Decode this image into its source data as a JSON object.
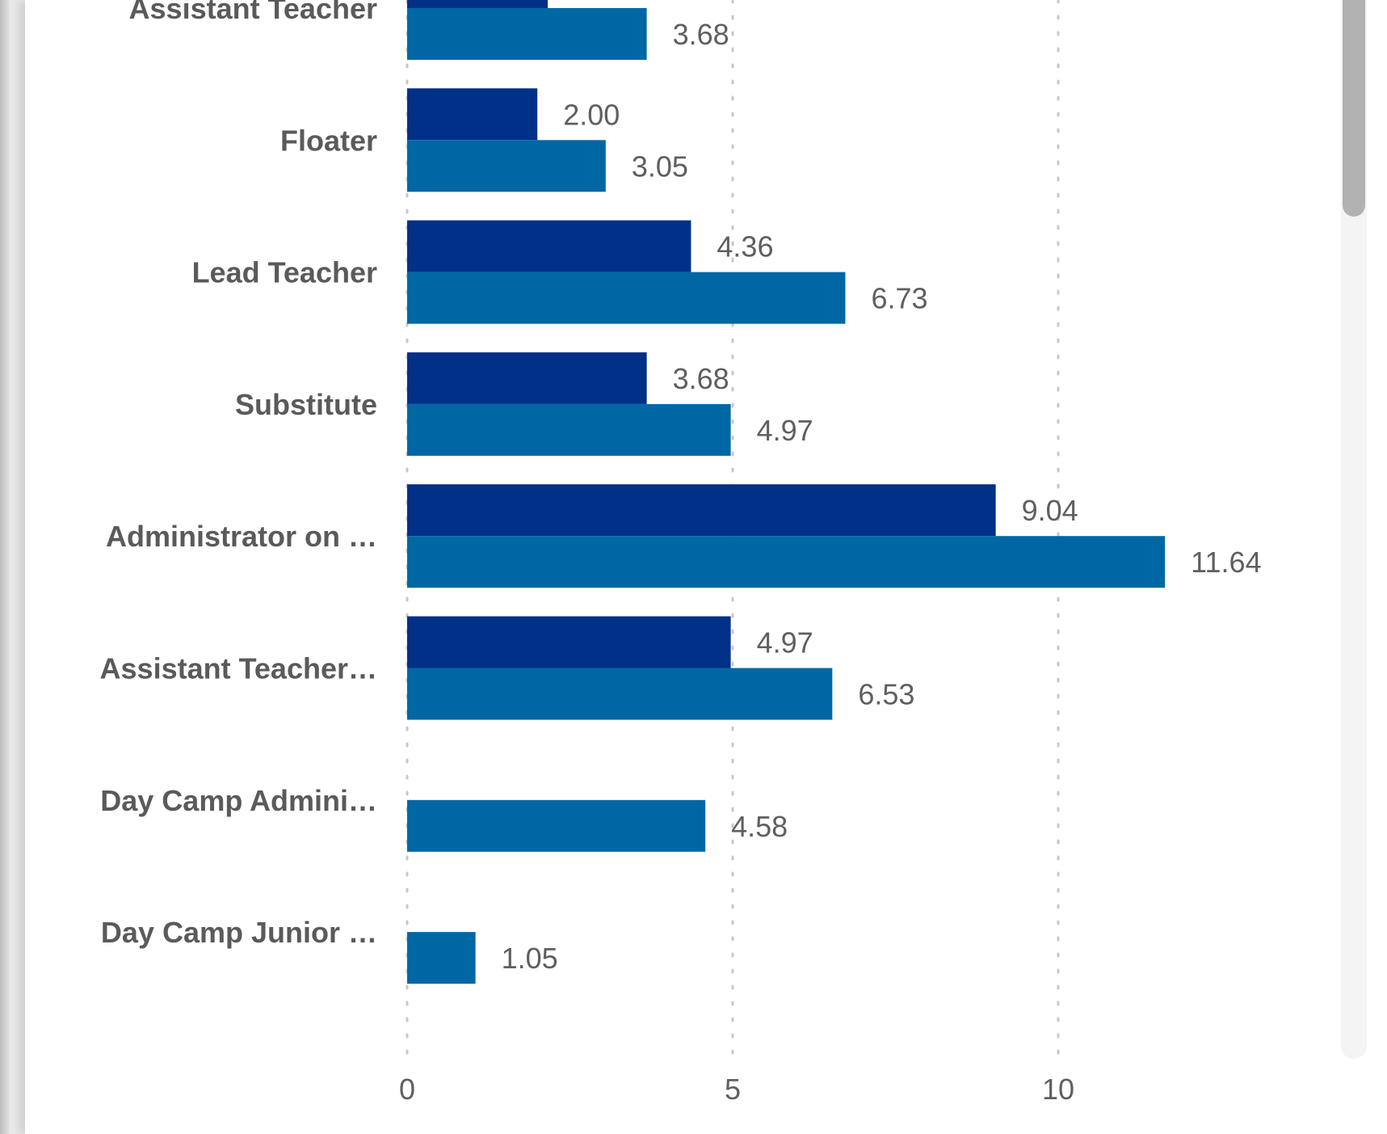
{
  "chart_data": {
    "type": "bar",
    "orientation": "horizontal",
    "categories": [
      "Assistant Teacher",
      "Floater",
      "Lead Teacher",
      "Substitute",
      "Administrator on …",
      "Assistant Teacher…",
      "Day Camp Admini…",
      "Day Camp Junior …"
    ],
    "series": [
      {
        "values": [
          null,
          2.0,
          4.36,
          3.68,
          9.04,
          4.97,
          null,
          null
        ],
        "labels": [
          "",
          "2.00",
          "4.36",
          "3.68",
          "9.04",
          "4.97",
          "",
          ""
        ],
        "color": "#003087"
      },
      {
        "values": [
          3.68,
          3.05,
          6.73,
          4.97,
          11.64,
          6.53,
          4.58,
          1.05
        ],
        "labels": [
          "3.68",
          "3.05",
          "6.73",
          "4.97",
          "11.64",
          "6.53",
          "4.58",
          "1.05"
        ],
        "color": "#0067a5"
      }
    ],
    "partially_visible_value": 2.16,
    "xticks": [
      "0",
      "5",
      "10"
    ],
    "xtick_values": [
      0,
      5,
      10
    ],
    "xlim": [
      0,
      13
    ],
    "grid": "vertical dotted",
    "legend": "none",
    "title": "",
    "xlabel": "",
    "ylabel": ""
  },
  "ui": {
    "scrollbar": "vertical"
  }
}
